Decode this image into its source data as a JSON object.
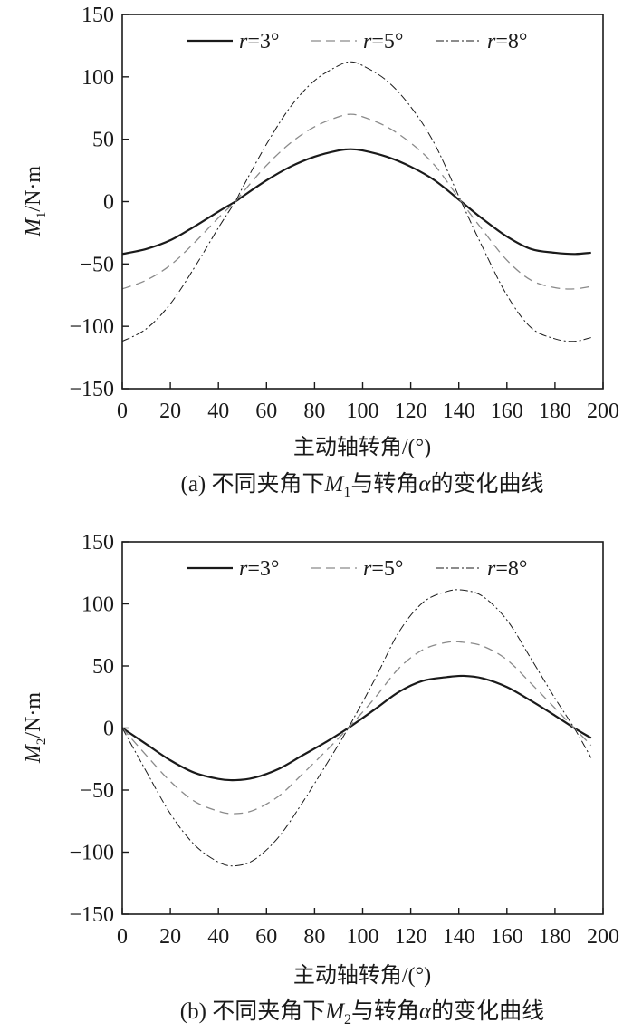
{
  "chart_data": [
    {
      "type": "line",
      "caption": {
        "prefix": "(a) 不同夹角下",
        "var": "M",
        "sub": "1",
        "mid": "与转角",
        "alpha": "α",
        "suffix": "的变化曲线"
      },
      "xlabel": "主动轴转角/(°)",
      "ylabel": {
        "var": "M",
        "sub": "1",
        "unit": "/N·m"
      },
      "xlim": [
        0,
        200
      ],
      "ylim": [
        -150,
        150
      ],
      "xticks": [
        "0",
        "20",
        "40",
        "60",
        "80",
        "100",
        "120",
        "140",
        "160",
        "180",
        "200"
      ],
      "yticks": [
        "150",
        "100",
        "50",
        "0",
        "−50",
        "−100",
        "−150"
      ],
      "legend_position": "top",
      "grid": false,
      "series": [
        {
          "label_var": "r",
          "label_eq": "=3°",
          "style": "solid",
          "x": [
            0,
            10,
            20,
            30,
            40,
            47,
            50,
            60,
            70,
            80,
            90,
            95,
            100,
            110,
            120,
            130,
            141,
            150,
            160,
            170,
            180,
            188,
            195
          ],
          "y": [
            -42,
            -38,
            -31,
            -20,
            -8,
            0,
            4,
            17,
            28,
            36,
            41,
            42,
            41,
            36,
            28,
            17,
            0,
            -14,
            -28,
            -38,
            -41,
            -42,
            -41
          ]
        },
        {
          "label_var": "r",
          "label_eq": "=5°",
          "style": "dashed",
          "x": [
            0,
            10,
            20,
            30,
            40,
            47,
            50,
            60,
            70,
            80,
            90,
            95,
            100,
            110,
            120,
            130,
            141,
            150,
            160,
            170,
            180,
            188,
            195
          ],
          "y": [
            -70,
            -63,
            -51,
            -33,
            -13,
            0,
            7,
            29,
            47,
            60,
            68,
            70,
            68,
            60,
            47,
            29,
            0,
            -23,
            -47,
            -63,
            -69,
            -70,
            -68
          ]
        },
        {
          "label_var": "r",
          "label_eq": "=8°",
          "style": "dashdot",
          "x": [
            0,
            10,
            20,
            30,
            40,
            47,
            50,
            60,
            70,
            80,
            90,
            95,
            100,
            110,
            120,
            130,
            141,
            150,
            160,
            170,
            180,
            188,
            195
          ],
          "y": [
            -112,
            -102,
            -82,
            -53,
            -21,
            0,
            11,
            46,
            76,
            97,
            109,
            112,
            109,
            97,
            76,
            46,
            0,
            -37,
            -75,
            -101,
            -110,
            -112,
            -109
          ]
        }
      ]
    },
    {
      "type": "line",
      "caption": {
        "prefix": "(b) 不同夹角下",
        "var": "M",
        "sub": "2",
        "mid": "与转角",
        "alpha": "α",
        "suffix": "的变化曲线"
      },
      "xlabel": "主动轴转角/(°)",
      "ylabel": {
        "var": "M",
        "sub": "2",
        "unit": "/N·m"
      },
      "xlim": [
        0,
        200
      ],
      "ylim": [
        -150,
        150
      ],
      "xticks": [
        "0",
        "20",
        "40",
        "60",
        "80",
        "100",
        "120",
        "140",
        "160",
        "180",
        "200"
      ],
      "yticks": [
        "150",
        "100",
        "50",
        "0",
        "−50",
        "−100",
        "−150"
      ],
      "legend_position": "top",
      "grid": false,
      "series": [
        {
          "label_var": "r",
          "label_eq": "=3°",
          "style": "solid",
          "x": [
            0,
            10,
            20,
            30,
            40,
            47,
            55,
            65,
            75,
            85,
            94,
            105,
            115,
            125,
            135,
            142,
            150,
            160,
            170,
            180,
            188,
            195
          ],
          "y": [
            0,
            -13,
            -26,
            -36,
            -41,
            -42,
            -40,
            -33,
            -22,
            -11,
            0,
            15,
            29,
            38,
            41,
            42,
            40,
            33,
            22,
            10,
            0,
            -8
          ]
        },
        {
          "label_var": "r",
          "label_eq": "=5°",
          "style": "dashed",
          "x": [
            0,
            10,
            20,
            30,
            40,
            47,
            55,
            65,
            75,
            85,
            94,
            105,
            115,
            125,
            135,
            142,
            150,
            160,
            170,
            180,
            188,
            195
          ],
          "y": [
            0,
            -22,
            -43,
            -59,
            -67,
            -69,
            -66,
            -55,
            -37,
            -18,
            0,
            24,
            48,
            63,
            69,
            69,
            66,
            55,
            36,
            16,
            0,
            -14
          ]
        },
        {
          "label_var": "r",
          "label_eq": "=8°",
          "style": "dashdot",
          "x": [
            0,
            10,
            20,
            30,
            40,
            47,
            55,
            65,
            75,
            85,
            94,
            105,
            115,
            125,
            135,
            142,
            150,
            160,
            170,
            180,
            188,
            195
          ],
          "y": [
            0,
            -35,
            -69,
            -94,
            -108,
            -111,
            -106,
            -88,
            -60,
            -29,
            0,
            39,
            77,
            101,
            110,
            111,
            106,
            87,
            56,
            24,
            0,
            -24
          ]
        }
      ]
    }
  ]
}
